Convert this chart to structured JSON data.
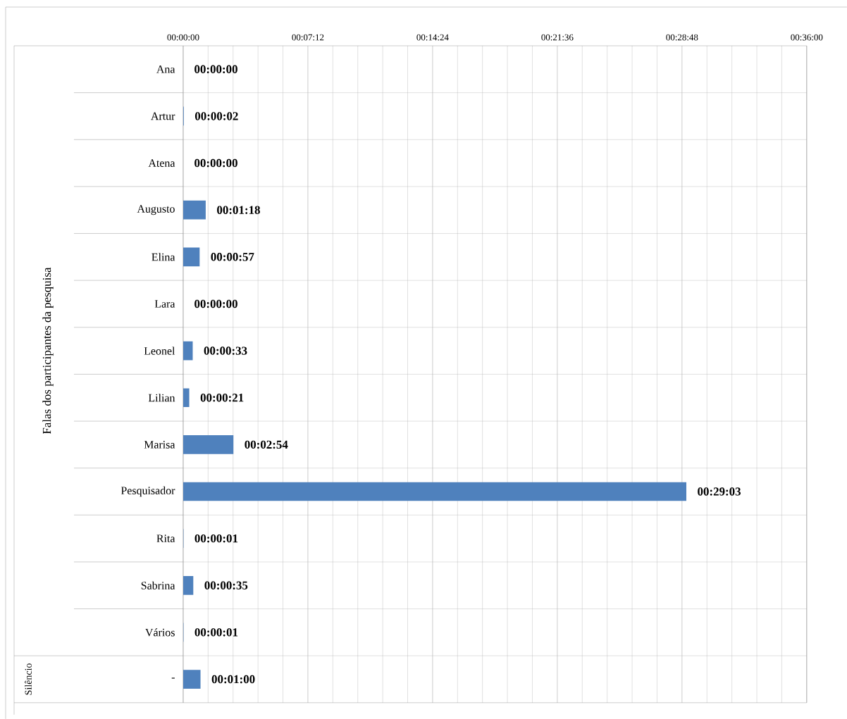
{
  "chart_data": {
    "type": "bar",
    "orientation": "horizontal",
    "annotations": [
      "Falas dos participantes da pesquisa",
      "Silêncio"
    ],
    "categories": [
      "Ana",
      "Artur",
      "Atena",
      "Augusto",
      "Elina",
      "Lara",
      "Leonel",
      "Lilian",
      "Marisa",
      "Pesquisador",
      "Rita",
      "Sabrina",
      "Vários",
      "-"
    ],
    "values": [
      0,
      2,
      0,
      78,
      57,
      0,
      33,
      21,
      174,
      1743,
      1,
      35,
      1,
      60
    ],
    "value_labels": [
      "00:00:00",
      "00:00:02",
      "00:00:00",
      "00:01:18",
      "00:00:57",
      "00:00:00",
      "00:00:33",
      "00:00:21",
      "00:02:54",
      "00:29:03",
      "00:00:01",
      "00:00:35",
      "00:00:01",
      "00:01:00"
    ],
    "color": "#4f81bd",
    "xlim": [
      0,
      2160
    ],
    "xticks": [
      {
        "value": 0,
        "label": "00:00:00"
      },
      {
        "value": 432,
        "label": "00:07:12"
      },
      {
        "value": 864,
        "label": "00:14:24"
      },
      {
        "value": 1296,
        "label": "00:21:36"
      },
      {
        "value": 1728,
        "label": "00:28:48"
      },
      {
        "value": 2160,
        "label": "00:36:00"
      }
    ],
    "grid": "x"
  }
}
